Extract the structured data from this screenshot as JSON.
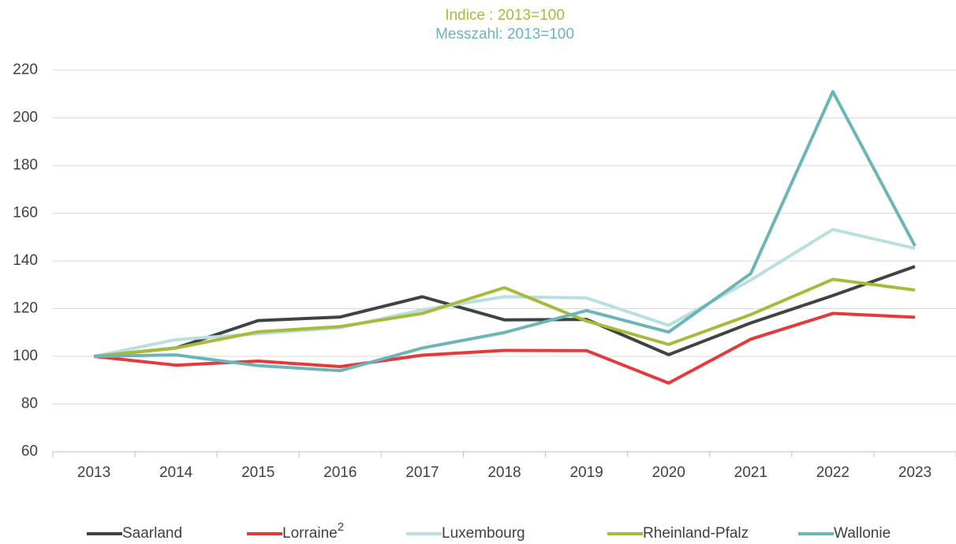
{
  "chart_data": {
    "type": "line",
    "subtitles": [
      {
        "text": "Indice : 2013=100",
        "color": "#a9b93a"
      },
      {
        "text": "Messzahl: 2013=100",
        "color": "#6ab5b8"
      }
    ],
    "categories": [
      "2013",
      "2014",
      "2015",
      "2016",
      "2017",
      "2018",
      "2019",
      "2020",
      "2021",
      "2022",
      "2023"
    ],
    "series": [
      {
        "name": "Saarland",
        "color": "#3d4543",
        "values": [
          100,
          103.5,
          115,
          116.5,
          125,
          115.3,
          115.5,
          100.7,
          114,
          125.5,
          137.7
        ]
      },
      {
        "name": "Lorraine",
        "name_sup": "2",
        "color": "#e8393a",
        "values": [
          100,
          96.3,
          98,
          95.7,
          100.5,
          102.5,
          102.4,
          88.8,
          107.2,
          118,
          116.4
        ]
      },
      {
        "name": "Luxembourg",
        "color": "#b9e0df",
        "values": [
          100,
          107,
          109.5,
          112,
          119.5,
          125,
          124.5,
          113,
          132,
          153.2,
          145.3
        ]
      },
      {
        "name": "Rheinland-Pfalz",
        "color": "#a9b93a",
        "values": [
          100,
          103.5,
          110.3,
          112.5,
          118,
          128.8,
          114.8,
          105,
          117.5,
          132.3,
          127.8
        ]
      },
      {
        "name": "Wallonie",
        "color": "#6ab5b8",
        "values": [
          100,
          100.6,
          96.1,
          94,
          103.5,
          110,
          119.2,
          110.2,
          134.7,
          211,
          146.3
        ]
      }
    ],
    "ylim": [
      60,
      220
    ],
    "yticks": [
      60,
      80,
      100,
      120,
      140,
      160,
      180,
      200,
      220
    ],
    "grid": true,
    "legend": "bottom"
  }
}
